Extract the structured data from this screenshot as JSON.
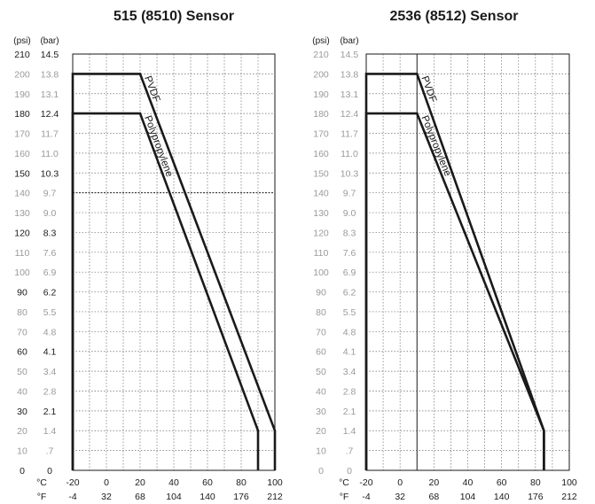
{
  "colors": {
    "curve": "#1a1a1a",
    "grid": "#6e6e6e",
    "axis": "#1a1a1a",
    "minor_tick_text": "#9a9a9a"
  },
  "chart_data": [
    {
      "type": "line",
      "title": "515 (8510) Sensor",
      "psi_unit": "(psi)",
      "bar_unit": "(bar)",
      "c_unit": "°C",
      "f_unit": "°F",
      "ylim_psi": [
        0,
        210
      ],
      "xlim_c": [
        -20,
        100
      ],
      "psi_ticks": [
        "210",
        "200",
        "190",
        "180",
        "170",
        "160",
        "150",
        "140",
        "130",
        "120",
        "110",
        "100",
        "90",
        "80",
        "70",
        "60",
        "50",
        "40",
        "30",
        "20",
        "10",
        "0"
      ],
      "bar_ticks": [
        "14.5",
        "13.8",
        "13.1",
        "12.4",
        "11.7",
        "11.0",
        "10.3",
        "9.7",
        "9.0",
        "8.3",
        "7.6",
        "6.9",
        "6.2",
        "5.5",
        "4.8",
        "4.1",
        "3.4",
        "2.8",
        "2.1",
        "1.4",
        ".7",
        "0"
      ],
      "major_psi": [
        210,
        180,
        150,
        120,
        90,
        60,
        30,
        0
      ],
      "c_ticks": [
        "-20",
        "0",
        "20",
        "40",
        "60",
        "80",
        "100"
      ],
      "f_ticks": [
        "-4",
        "32",
        "68",
        "104",
        "140",
        "176",
        "212"
      ],
      "bold_hline_psi": 140,
      "bold_vline_c": null,
      "series": [
        {
          "name": "PVDF",
          "x": [
            -20,
            -20,
            20,
            100,
            100
          ],
          "y": [
            0,
            200,
            200,
            20,
            0
          ]
        },
        {
          "name": "Polypropylene",
          "x": [
            -20,
            -20,
            20,
            90,
            90
          ],
          "y": [
            0,
            180,
            180,
            20,
            0
          ]
        }
      ]
    },
    {
      "type": "line",
      "title": "2536 (8512) Sensor",
      "psi_unit": "(psi)",
      "bar_unit": "(bar)",
      "c_unit": "°C",
      "f_unit": "°F",
      "ylim_psi": [
        0,
        210
      ],
      "xlim_c": [
        -20,
        100
      ],
      "psi_ticks": [
        "210",
        "200",
        "190",
        "180",
        "170",
        "160",
        "150",
        "140",
        "130",
        "120",
        "110",
        "100",
        "90",
        "80",
        "70",
        "60",
        "50",
        "40",
        "30",
        "20",
        "10",
        "0"
      ],
      "bar_ticks": [
        "14.5",
        "13.8",
        "13.1",
        "12.4",
        "11.7",
        "11.0",
        "10.3",
        "9.7",
        "9.0",
        "8.3",
        "7.6",
        "6.9",
        "6.2",
        "5.5",
        "4.8",
        "4.1",
        "3.4",
        "2.8",
        "2.1",
        "1.4",
        ".7",
        "0"
      ],
      "major_psi": [],
      "c_ticks": [
        "-20",
        "0",
        "20",
        "40",
        "60",
        "80",
        "100"
      ],
      "f_ticks": [
        "-4",
        "32",
        "68",
        "104",
        "140",
        "176",
        "212"
      ],
      "bold_hline_psi": null,
      "bold_vline_c": 10,
      "series": [
        {
          "name": "PVDF",
          "x": [
            -20,
            -20,
            10,
            85,
            85
          ],
          "y": [
            0,
            200,
            200,
            20,
            0
          ]
        },
        {
          "name": "Polypropylene",
          "x": [
            -20,
            -20,
            10,
            85,
            85
          ],
          "y": [
            0,
            180,
            180,
            20,
            0
          ]
        }
      ]
    }
  ]
}
